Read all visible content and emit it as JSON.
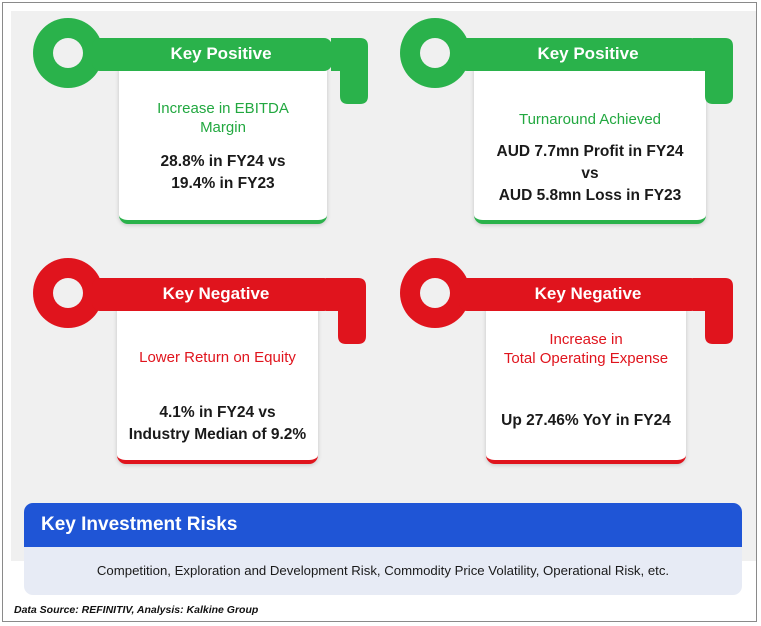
{
  "cards": [
    {
      "title": "Key Positive",
      "subtitle_lines": [
        "Increase in EBITDA",
        "Margin"
      ],
      "body_lines": [
        "28.8% in FY24 vs",
        "19.4% in FY23"
      ],
      "color": "#2ab24b"
    },
    {
      "title": "Key Positive",
      "subtitle_lines": [
        "Turnaround Achieved"
      ],
      "body_lines": [
        "AUD 7.7mn Profit in FY24",
        "vs",
        "AUD 5.8mn Loss in FY23"
      ],
      "color": "#2ab24b"
    },
    {
      "title": "Key Negative",
      "subtitle_lines": [
        "Lower Return on Equity"
      ],
      "body_lines": [
        "4.1% in FY24 vs",
        "Industry Median of 9.2%"
      ],
      "color": "#e0141d"
    },
    {
      "title": "Key Negative",
      "subtitle_lines": [
        "Increase in",
        "Total Operating Expense"
      ],
      "body_lines": [
        "Up 27.46% YoY in FY24"
      ],
      "color": "#e0141d"
    }
  ],
  "risks": {
    "title": "Key Investment Risks",
    "text": "Competition, Exploration and Development Risk, Commodity Price Volatility, Operational Risk, etc.",
    "header_color": "#1f55d6"
  },
  "source": "Data Source: REFINITIV, Analysis: Kalkine Group",
  "icons": {
    "key": "key-icon"
  }
}
